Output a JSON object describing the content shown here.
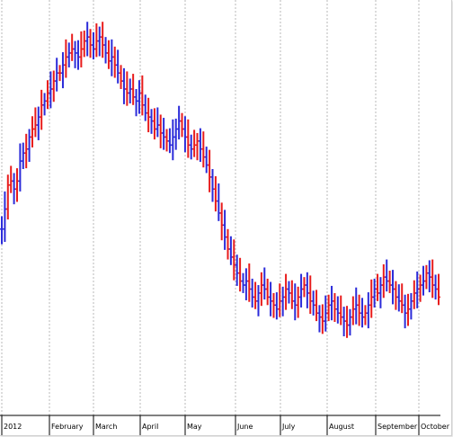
{
  "chart_data": {
    "type": "ohlc",
    "title": "",
    "xlabel": "",
    "ylabel": "",
    "grid": true,
    "legend": "none",
    "colors": {
      "up": "#2b2bd9",
      "down": "#e81c1c",
      "grid": "#b8b8b8",
      "axis": "#000000",
      "background": "#ffffff"
    },
    "x_ticks": [
      "2012",
      "February",
      "March",
      "April",
      "May",
      "June",
      "July",
      "August",
      "September",
      "October"
    ],
    "ylim": [
      0,
      100
    ],
    "series": [
      {
        "name": "",
        "values": [
          [
            1,
            45,
            "u"
          ],
          [
            2,
            50,
            "u"
          ],
          [
            3,
            56,
            "d"
          ],
          [
            4,
            57,
            "d"
          ],
          [
            5,
            55,
            "u"
          ],
          [
            6,
            57,
            "d"
          ],
          [
            7,
            62,
            "u"
          ],
          [
            8,
            64,
            "u"
          ],
          [
            9,
            65,
            "d"
          ],
          [
            10,
            68,
            "u"
          ],
          [
            11,
            70,
            "d"
          ],
          [
            12,
            71,
            "d"
          ],
          [
            13,
            73,
            "u"
          ],
          [
            14,
            76,
            "d"
          ],
          [
            15,
            77,
            "u"
          ],
          [
            16,
            79,
            "d"
          ],
          [
            17,
            80,
            "u"
          ],
          [
            18,
            82,
            "d"
          ],
          [
            19,
            84,
            "u"
          ],
          [
            20,
            84,
            "d"
          ],
          [
            21,
            86,
            "u"
          ],
          [
            22,
            88,
            "d"
          ],
          [
            23,
            89,
            "u"
          ],
          [
            24,
            90,
            "d"
          ],
          [
            25,
            89,
            "u"
          ],
          [
            26,
            88,
            "u"
          ],
          [
            27,
            90,
            "d"
          ],
          [
            28,
            92,
            "d"
          ],
          [
            29,
            93,
            "u"
          ],
          [
            30,
            91,
            "d"
          ],
          [
            31,
            90,
            "u"
          ],
          [
            32,
            92,
            "d"
          ],
          [
            33,
            93,
            "u"
          ],
          [
            34,
            91,
            "d"
          ],
          [
            35,
            89,
            "u"
          ],
          [
            36,
            87,
            "d"
          ],
          [
            37,
            88,
            "u"
          ],
          [
            38,
            86,
            "d"
          ],
          [
            39,
            84,
            "u"
          ],
          [
            40,
            82,
            "d"
          ],
          [
            41,
            80,
            "u"
          ],
          [
            42,
            79,
            "d"
          ],
          [
            43,
            80,
            "u"
          ],
          [
            44,
            78,
            "d"
          ],
          [
            45,
            77,
            "u"
          ],
          [
            46,
            79,
            "u"
          ],
          [
            47,
            76,
            "d"
          ],
          [
            48,
            74,
            "u"
          ],
          [
            49,
            73,
            "d"
          ],
          [
            50,
            72,
            "u"
          ],
          [
            51,
            70,
            "d"
          ],
          [
            52,
            71,
            "u"
          ],
          [
            53,
            69,
            "d"
          ],
          [
            54,
            68,
            "u"
          ],
          [
            55,
            67,
            "d"
          ],
          [
            56,
            66,
            "u"
          ],
          [
            57,
            68,
            "u"
          ],
          [
            58,
            70,
            "u"
          ],
          [
            59,
            72,
            "u"
          ],
          [
            60,
            70,
            "d"
          ],
          [
            61,
            68,
            "u"
          ],
          [
            62,
            66,
            "d"
          ],
          [
            63,
            65,
            "u"
          ],
          [
            64,
            66,
            "d"
          ],
          [
            65,
            67,
            "d"
          ],
          [
            66,
            65,
            "u"
          ],
          [
            67,
            63,
            "d"
          ],
          [
            68,
            61,
            "u"
          ],
          [
            69,
            58,
            "d"
          ],
          [
            70,
            55,
            "u"
          ],
          [
            71,
            52,
            "d"
          ],
          [
            72,
            49,
            "u"
          ],
          [
            73,
            46,
            "d"
          ],
          [
            74,
            43,
            "u"
          ],
          [
            75,
            40,
            "d"
          ],
          [
            76,
            38,
            "u"
          ],
          [
            77,
            36,
            "d"
          ],
          [
            78,
            34,
            "u"
          ],
          [
            79,
            32,
            "d"
          ],
          [
            80,
            31,
            "u"
          ],
          [
            81,
            32,
            "u"
          ],
          [
            82,
            30,
            "d"
          ],
          [
            83,
            28,
            "u"
          ],
          [
            84,
            27,
            "d"
          ],
          [
            85,
            29,
            "u"
          ],
          [
            86,
            31,
            "d"
          ],
          [
            87,
            30,
            "u"
          ],
          [
            88,
            28,
            "d"
          ],
          [
            89,
            27,
            "u"
          ],
          [
            90,
            26,
            "d"
          ],
          [
            91,
            25,
            "u"
          ],
          [
            92,
            27,
            "d"
          ],
          [
            93,
            28,
            "u"
          ],
          [
            94,
            30,
            "d"
          ],
          [
            95,
            29,
            "u"
          ],
          [
            96,
            27,
            "d"
          ],
          [
            97,
            26,
            "u"
          ],
          [
            98,
            28,
            "d"
          ],
          [
            99,
            30,
            "u"
          ],
          [
            100,
            31,
            "d"
          ],
          [
            101,
            29,
            "u"
          ],
          [
            102,
            27,
            "d"
          ],
          [
            103,
            26,
            "u"
          ],
          [
            104,
            24,
            "d"
          ],
          [
            105,
            23,
            "u"
          ],
          [
            106,
            22,
            "d"
          ],
          [
            107,
            24,
            "u"
          ],
          [
            108,
            26,
            "d"
          ],
          [
            109,
            27,
            "u"
          ],
          [
            110,
            25,
            "d"
          ],
          [
            111,
            24,
            "u"
          ],
          [
            112,
            23,
            "d"
          ],
          [
            113,
            22,
            "u"
          ],
          [
            114,
            21,
            "d"
          ],
          [
            115,
            23,
            "u"
          ],
          [
            116,
            25,
            "d"
          ],
          [
            117,
            26,
            "u"
          ],
          [
            118,
            24,
            "d"
          ],
          [
            119,
            23,
            "u"
          ],
          [
            120,
            24,
            "d"
          ],
          [
            121,
            26,
            "u"
          ],
          [
            122,
            28,
            "d"
          ],
          [
            123,
            30,
            "u"
          ],
          [
            124,
            29,
            "d"
          ],
          [
            125,
            31,
            "u"
          ],
          [
            126,
            33,
            "d"
          ],
          [
            127,
            32,
            "u"
          ],
          [
            128,
            31,
            "d"
          ],
          [
            129,
            30,
            "u"
          ],
          [
            130,
            28,
            "d"
          ],
          [
            131,
            27,
            "u"
          ],
          [
            132,
            26,
            "d"
          ],
          [
            133,
            24,
            "u"
          ],
          [
            134,
            25,
            "d"
          ],
          [
            135,
            27,
            "u"
          ],
          [
            136,
            29,
            "d"
          ],
          [
            137,
            30,
            "u"
          ],
          [
            138,
            31,
            "d"
          ],
          [
            139,
            32,
            "u"
          ],
          [
            140,
            34,
            "d"
          ],
          [
            141,
            33,
            "u"
          ],
          [
            142,
            31,
            "d"
          ],
          [
            143,
            30,
            "u"
          ],
          [
            144,
            28,
            "d"
          ]
        ]
      }
    ]
  }
}
